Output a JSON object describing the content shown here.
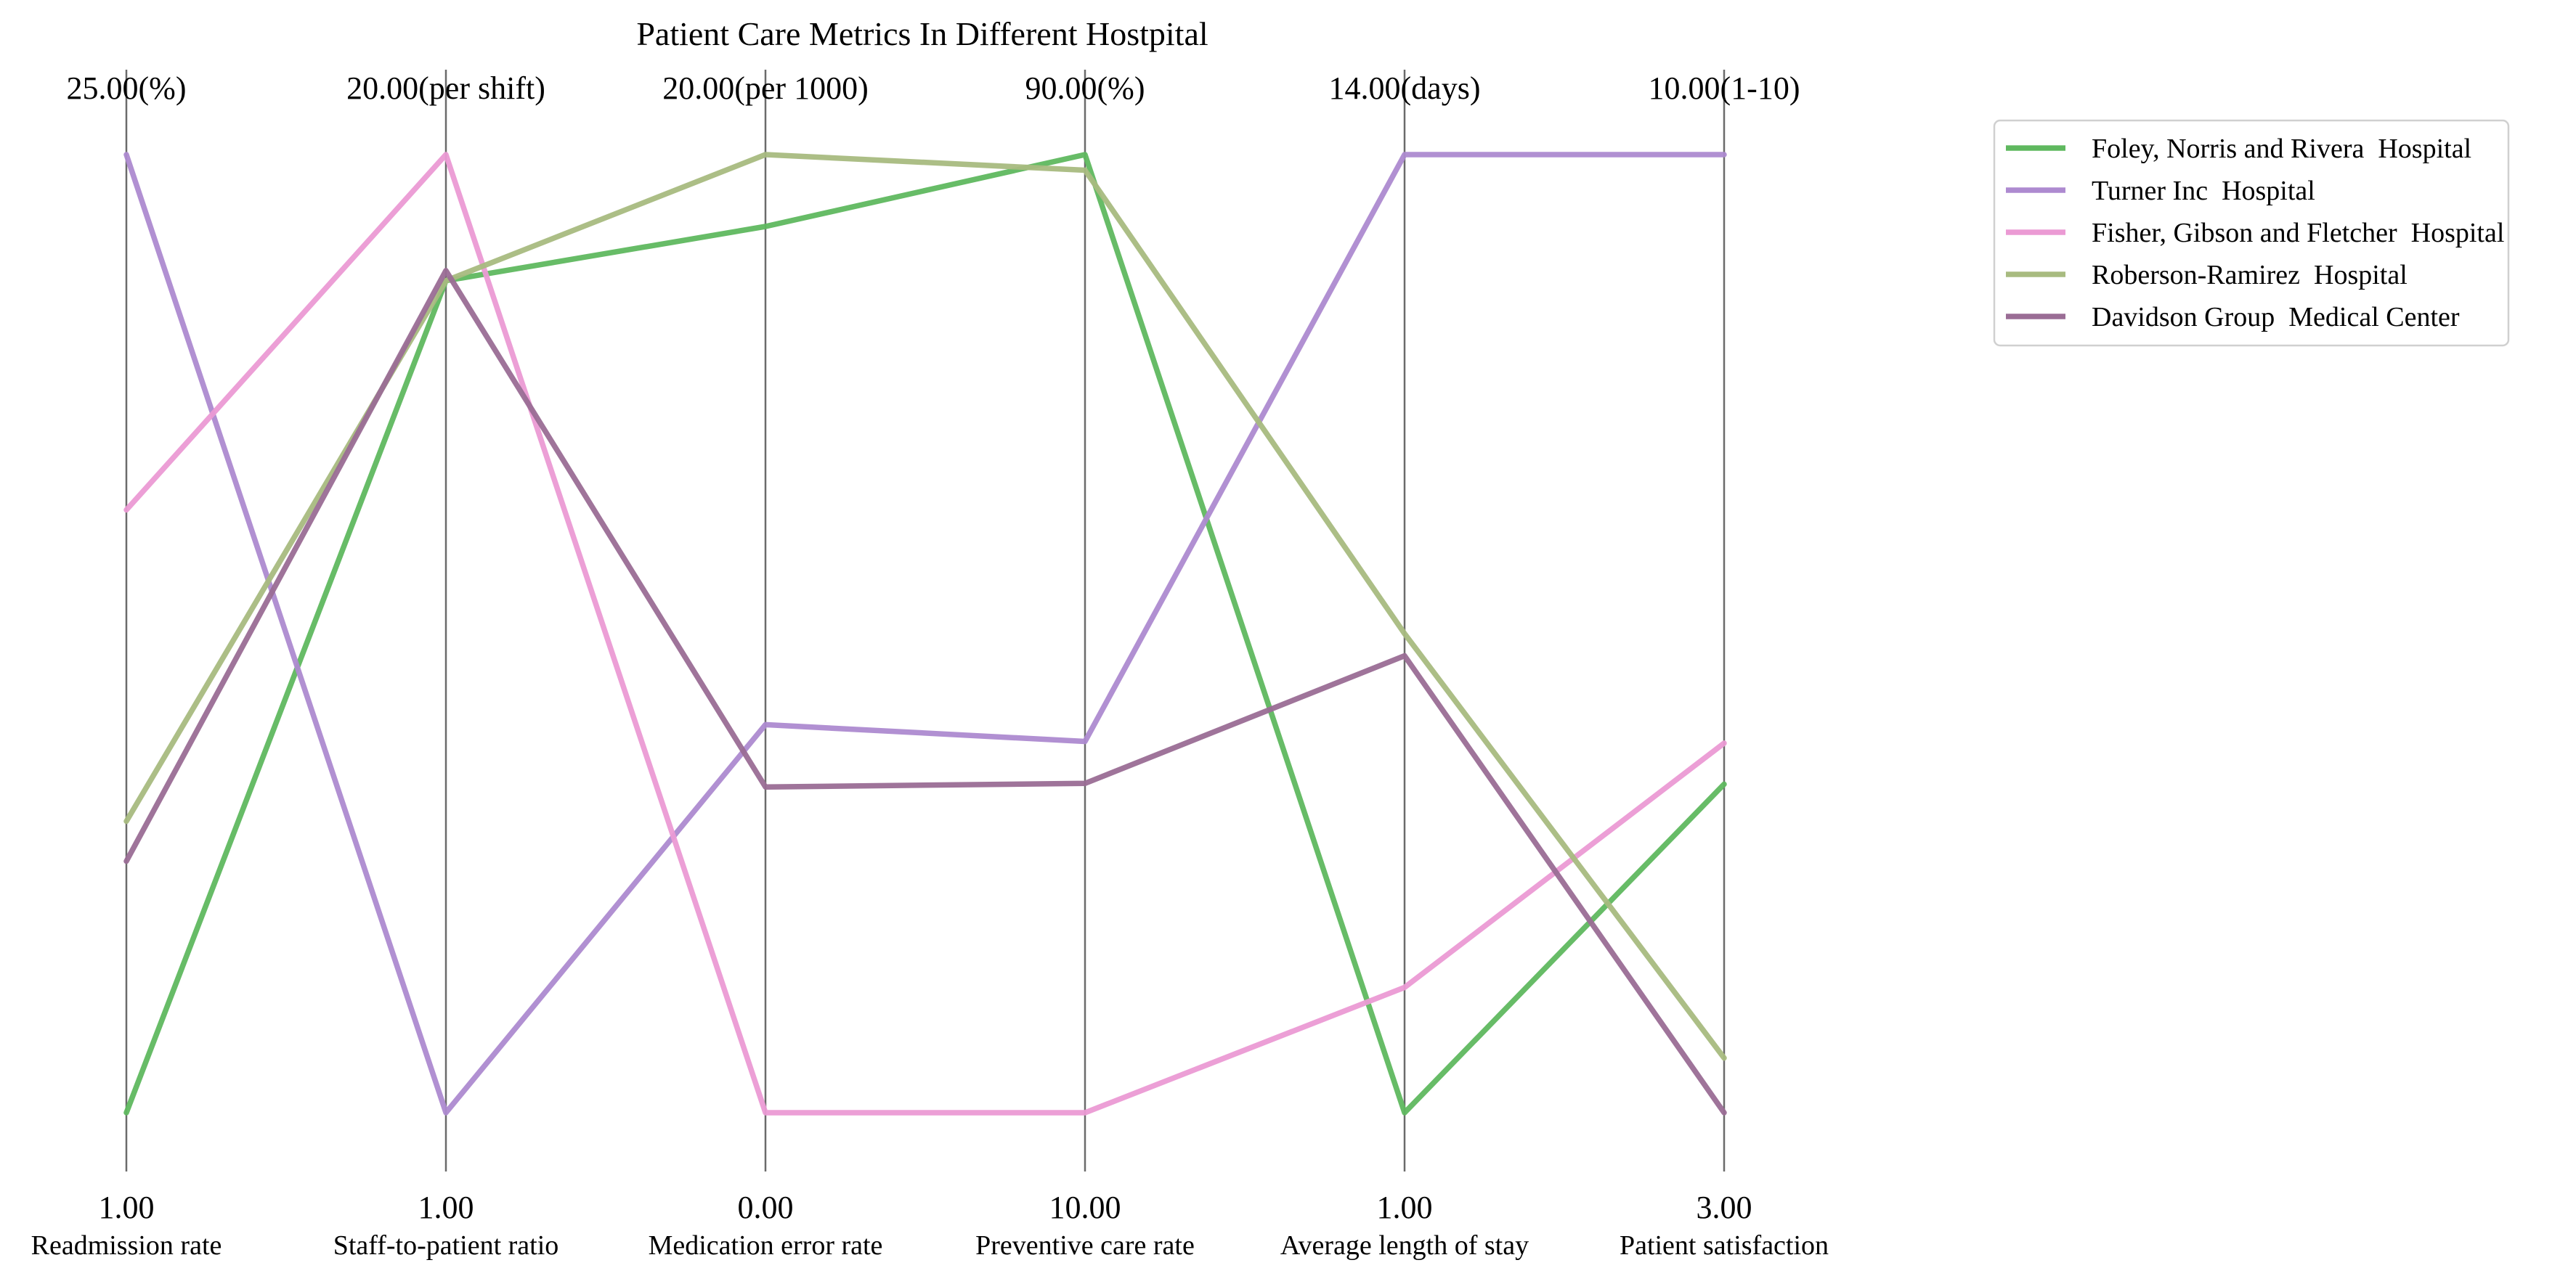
{
  "chart_data": {
    "type": "parallel-coordinates",
    "title": "Patient Care Metrics In Different Hostpital",
    "axes": [
      {
        "name": "Readmission rate",
        "max_label": "25.00(%)",
        "min_label": "1.00",
        "min": 1,
        "max": 25
      },
      {
        "name": "Staff-to-patient ratio",
        "max_label": "20.00(per shift)",
        "min_label": "1.00",
        "min": 1,
        "max": 20
      },
      {
        "name": "Medication error rate",
        "max_label": "20.00(per 1000)",
        "min_label": "0.00",
        "min": 0,
        "max": 20
      },
      {
        "name": "Preventive care rate",
        "max_label": "90.00(%)",
        "min_label": "10.00",
        "min": 10,
        "max": 90
      },
      {
        "name": "Average length of stay",
        "max_label": "14.00(days)",
        "min_label": "1.00",
        "min": 1,
        "max": 14
      },
      {
        "name": "Patient satisfaction",
        "max_label": "10.00(1-10)",
        "min_label": "3.00",
        "min": 3,
        "max": 10
      }
    ],
    "series": [
      {
        "name": "Foley, Norris and Rivera  Hospital",
        "color": "#5fb85f",
        "values": [
          1.0,
          17.5,
          18.5,
          90.0,
          1.0,
          5.4
        ]
      },
      {
        "name": "Turner Inc  Hospital",
        "color": "#ad8ad0",
        "values": [
          25.0,
          1.0,
          8.1,
          41.0,
          14.0,
          10.0
        ]
      },
      {
        "name": "Fisher, Gibson and Fletcher  Hospital",
        "color": "#eb9ad4",
        "values": [
          16.1,
          20.0,
          0.0,
          10.0,
          2.7,
          5.7
        ]
      },
      {
        "name": "Roberson-Ramirez  Hospital",
        "color": "#a8bb80",
        "values": [
          8.3,
          17.5,
          20.0,
          88.7,
          7.5,
          3.4
        ]
      },
      {
        "name": "Davidson Group  Medical Center",
        "color": "#9a6d95",
        "values": [
          7.3,
          17.7,
          6.8,
          37.5,
          7.2,
          3.0
        ]
      }
    ],
    "legend": {
      "position": "top-right"
    }
  }
}
